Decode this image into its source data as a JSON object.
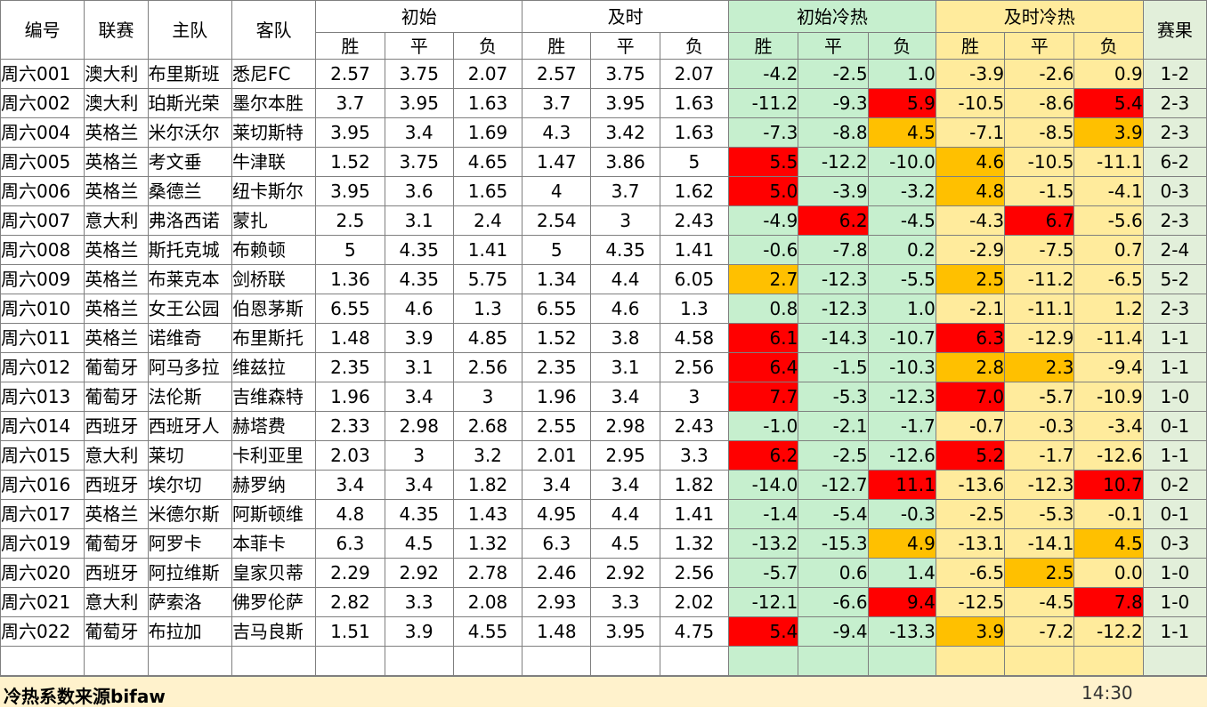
{
  "headers": {
    "id": "编号",
    "league": "联赛",
    "home": "主队",
    "away": "客队",
    "initial": "初始",
    "live": "及时",
    "initial_cold": "初始冷热",
    "live_cold": "及时冷热",
    "result": "赛果",
    "win": "胜",
    "draw": "平",
    "loss": "负"
  },
  "rows": [
    {
      "id": "周六001",
      "league": "澳大利",
      "home": "布里斯班",
      "away": "悉尼FC",
      "i": [
        "2.57",
        "3.75",
        "2.07"
      ],
      "l": [
        "2.57",
        "3.75",
        "2.07"
      ],
      "ic": [
        "-4.2",
        "-2.5",
        "1.0"
      ],
      "lc": [
        "-3.9",
        "-2.6",
        "0.9"
      ],
      "res": "1-2"
    },
    {
      "id": "周六002",
      "league": "澳大利",
      "home": "珀斯光荣",
      "away": "墨尔本胜",
      "i": [
        "3.7",
        "3.95",
        "1.63"
      ],
      "l": [
        "3.7",
        "3.95",
        "1.63"
      ],
      "ic": [
        "-11.2",
        "-9.3",
        "5.9"
      ],
      "lc": [
        "-10.5",
        "-8.6",
        "5.4"
      ],
      "res": "2-3"
    },
    {
      "id": "周六004",
      "league": "英格兰",
      "home": "米尔沃尔",
      "away": "莱切斯特",
      "i": [
        "3.95",
        "3.4",
        "1.69"
      ],
      "l": [
        "4.3",
        "3.42",
        "1.63"
      ],
      "ic": [
        "-7.3",
        "-8.8",
        "4.5"
      ],
      "lc": [
        "-7.1",
        "-8.5",
        "3.9"
      ],
      "res": "2-3"
    },
    {
      "id": "周六005",
      "league": "英格兰",
      "home": "考文垂",
      "away": "牛津联",
      "i": [
        "1.52",
        "3.75",
        "4.65"
      ],
      "l": [
        "1.47",
        "3.86",
        "5"
      ],
      "ic": [
        "5.5",
        "-12.2",
        "-10.0"
      ],
      "lc": [
        "4.6",
        "-10.5",
        "-11.1"
      ],
      "res": "6-2"
    },
    {
      "id": "周六006",
      "league": "英格兰",
      "home": "桑德兰",
      "away": "纽卡斯尔",
      "i": [
        "3.95",
        "3.6",
        "1.65"
      ],
      "l": [
        "4",
        "3.7",
        "1.62"
      ],
      "ic": [
        "5.0",
        "-3.9",
        "-3.2"
      ],
      "lc": [
        "4.8",
        "-1.5",
        "-4.1"
      ],
      "res": "0-3"
    },
    {
      "id": "周六007",
      "league": "意大利",
      "home": "弗洛西诺",
      "away": "蒙扎",
      "i": [
        "2.5",
        "3.1",
        "2.4"
      ],
      "l": [
        "2.54",
        "3",
        "2.43"
      ],
      "ic": [
        "-4.9",
        "6.2",
        "-4.5"
      ],
      "lc": [
        "-4.3",
        "6.7",
        "-5.6"
      ],
      "res": "2-3"
    },
    {
      "id": "周六008",
      "league": "英格兰",
      "home": "斯托克城",
      "away": "布赖顿",
      "i": [
        "5",
        "4.35",
        "1.41"
      ],
      "l": [
        "5",
        "4.35",
        "1.41"
      ],
      "ic": [
        "-0.6",
        "-7.8",
        "0.2"
      ],
      "lc": [
        "-2.9",
        "-7.5",
        "0.7"
      ],
      "res": "2-4"
    },
    {
      "id": "周六009",
      "league": "英格兰",
      "home": "布莱克本",
      "away": "剑桥联",
      "i": [
        "1.36",
        "4.35",
        "5.75"
      ],
      "l": [
        "1.34",
        "4.4",
        "6.05"
      ],
      "ic": [
        "2.7",
        "-12.3",
        "-5.5"
      ],
      "lc": [
        "2.5",
        "-11.2",
        "-6.5"
      ],
      "res": "5-2"
    },
    {
      "id": "周六010",
      "league": "英格兰",
      "home": "女王公园",
      "away": "伯恩茅斯",
      "i": [
        "6.55",
        "4.6",
        "1.3"
      ],
      "l": [
        "6.55",
        "4.6",
        "1.3"
      ],
      "ic": [
        "0.8",
        "-12.3",
        "1.0"
      ],
      "lc": [
        "-2.1",
        "-11.1",
        "1.2"
      ],
      "res": "2-3"
    },
    {
      "id": "周六011",
      "league": "英格兰",
      "home": "诺维奇",
      "away": "布里斯托",
      "i": [
        "1.48",
        "3.9",
        "4.85"
      ],
      "l": [
        "1.52",
        "3.8",
        "4.58"
      ],
      "ic": [
        "6.1",
        "-14.3",
        "-10.7"
      ],
      "lc": [
        "6.3",
        "-12.9",
        "-11.4"
      ],
      "res": "1-1"
    },
    {
      "id": "周六012",
      "league": "葡萄牙",
      "home": "阿马多拉",
      "away": "维兹拉",
      "i": [
        "2.35",
        "3.1",
        "2.56"
      ],
      "l": [
        "2.35",
        "3.1",
        "2.56"
      ],
      "ic": [
        "6.4",
        "-1.5",
        "-10.3"
      ],
      "lc": [
        "2.8",
        "2.3",
        "-9.4"
      ],
      "res": "1-1"
    },
    {
      "id": "周六013",
      "league": "葡萄牙",
      "home": "法伦斯",
      "away": "吉维森特",
      "i": [
        "1.96",
        "3.4",
        "3"
      ],
      "l": [
        "1.96",
        "3.4",
        "3"
      ],
      "ic": [
        "7.7",
        "-5.3",
        "-12.3"
      ],
      "lc": [
        "7.0",
        "-5.7",
        "-10.9"
      ],
      "res": "1-0"
    },
    {
      "id": "周六014",
      "league": "西班牙",
      "home": "西班牙人",
      "away": "赫塔费",
      "i": [
        "2.33",
        "2.98",
        "2.68"
      ],
      "l": [
        "2.55",
        "2.98",
        "2.43"
      ],
      "ic": [
        "-1.0",
        "-2.1",
        "-1.7"
      ],
      "lc": [
        "-0.7",
        "-0.3",
        "-3.4"
      ],
      "res": "0-1"
    },
    {
      "id": "周六015",
      "league": "意大利",
      "home": "莱切",
      "away": "卡利亚里",
      "i": [
        "2.03",
        "3",
        "3.2"
      ],
      "l": [
        "2.01",
        "2.95",
        "3.3"
      ],
      "ic": [
        "6.2",
        "-2.5",
        "-12.6"
      ],
      "lc": [
        "5.2",
        "-1.7",
        "-12.6"
      ],
      "res": "1-1"
    },
    {
      "id": "周六016",
      "league": "西班牙",
      "home": "埃尔切",
      "away": "赫罗纳",
      "i": [
        "3.4",
        "3.4",
        "1.82"
      ],
      "l": [
        "3.4",
        "3.4",
        "1.82"
      ],
      "ic": [
        "-14.0",
        "-12.7",
        "11.1"
      ],
      "lc": [
        "-13.6",
        "-12.3",
        "10.7"
      ],
      "res": "0-2"
    },
    {
      "id": "周六017",
      "league": "英格兰",
      "home": "米德尔斯",
      "away": "阿斯顿维",
      "i": [
        "4.8",
        "4.35",
        "1.43"
      ],
      "l": [
        "4.95",
        "4.4",
        "1.41"
      ],
      "ic": [
        "-1.4",
        "-5.4",
        "-0.3"
      ],
      "lc": [
        "-2.5",
        "-5.3",
        "-0.1"
      ],
      "res": "0-1"
    },
    {
      "id": "周六019",
      "league": "葡萄牙",
      "home": "阿罗卡",
      "away": "本菲卡",
      "i": [
        "6.3",
        "4.5",
        "1.32"
      ],
      "l": [
        "6.3",
        "4.5",
        "1.32"
      ],
      "ic": [
        "-13.2",
        "-15.3",
        "4.9"
      ],
      "lc": [
        "-13.1",
        "-14.1",
        "4.5"
      ],
      "res": "0-3"
    },
    {
      "id": "周六020",
      "league": "西班牙",
      "home": "阿拉维斯",
      "away": "皇家贝蒂",
      "i": [
        "2.29",
        "2.92",
        "2.78"
      ],
      "l": [
        "2.46",
        "2.92",
        "2.56"
      ],
      "ic": [
        "-5.7",
        "0.6",
        "1.4"
      ],
      "lc": [
        "-6.5",
        "2.5",
        "0.0"
      ],
      "res": "1-0"
    },
    {
      "id": "周六021",
      "league": "意大利",
      "home": "萨索洛",
      "away": "佛罗伦萨",
      "i": [
        "2.82",
        "3.3",
        "2.08"
      ],
      "l": [
        "2.93",
        "3.3",
        "2.02"
      ],
      "ic": [
        "-12.1",
        "-6.6",
        "9.4"
      ],
      "lc": [
        "-12.5",
        "-4.5",
        "7.8"
      ],
      "res": "1-0"
    },
    {
      "id": "周六022",
      "league": "葡萄牙",
      "home": "布拉加",
      "away": "吉马良斯",
      "i": [
        "1.51",
        "3.9",
        "4.55"
      ],
      "l": [
        "1.48",
        "3.95",
        "4.75"
      ],
      "ic": [
        "5.4",
        "-9.4",
        "-13.3"
      ],
      "lc": [
        "3.9",
        "-7.2",
        "-12.2"
      ],
      "res": "1-1"
    }
  ],
  "highlights": {
    "colors": {
      "red": "#ff0000",
      "orange": "#ffc000",
      "initial_bg": "#c6efce",
      "live_bg": "#ffeb9c"
    },
    "ic": [
      [
        null,
        null,
        null
      ],
      [
        null,
        null,
        "red"
      ],
      [
        null,
        null,
        "orange"
      ],
      [
        "red",
        null,
        null
      ],
      [
        "red",
        null,
        null
      ],
      [
        null,
        "red",
        null
      ],
      [
        null,
        null,
        null
      ],
      [
        "orange",
        null,
        null
      ],
      [
        null,
        null,
        null
      ],
      [
        "red",
        null,
        null
      ],
      [
        "red",
        null,
        null
      ],
      [
        "red",
        null,
        null
      ],
      [
        null,
        null,
        null
      ],
      [
        "red",
        null,
        null
      ],
      [
        null,
        null,
        "red"
      ],
      [
        null,
        null,
        null
      ],
      [
        null,
        null,
        "orange"
      ],
      [
        null,
        null,
        null
      ],
      [
        null,
        null,
        "red"
      ],
      [
        "red",
        null,
        null
      ]
    ],
    "lc": [
      [
        null,
        null,
        null
      ],
      [
        null,
        null,
        "red"
      ],
      [
        null,
        null,
        "orange"
      ],
      [
        "orange",
        null,
        null
      ],
      [
        "orange",
        null,
        null
      ],
      [
        null,
        "red",
        null
      ],
      [
        null,
        null,
        null
      ],
      [
        "orange",
        null,
        null
      ],
      [
        null,
        null,
        null
      ],
      [
        "red",
        null,
        null
      ],
      [
        "orange",
        "orange",
        null
      ],
      [
        "red",
        null,
        null
      ],
      [
        null,
        null,
        null
      ],
      [
        "red",
        null,
        null
      ],
      [
        null,
        null,
        "red"
      ],
      [
        null,
        null,
        null
      ],
      [
        null,
        null,
        "orange"
      ],
      [
        null,
        "orange",
        null
      ],
      [
        null,
        null,
        "red"
      ],
      [
        "orange",
        null,
        null
      ]
    ]
  },
  "footer": {
    "note": "冷热系数来源bifaw",
    "time": "14:30"
  }
}
